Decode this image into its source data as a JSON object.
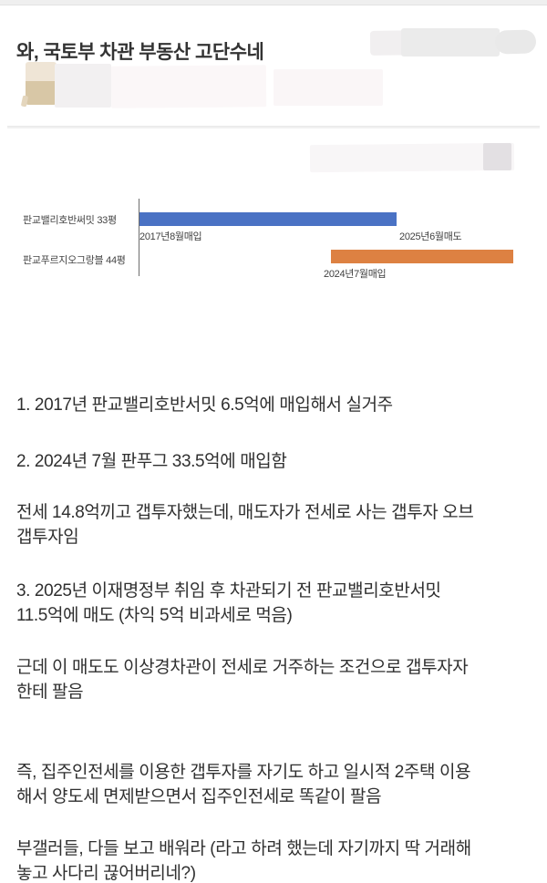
{
  "post": {
    "title": "와, 국토부 차관 부동산 고단수네",
    "paragraphs": [
      "1. 2017년 판교밸리호반서밋 6.5억에 매입해서 실거주",
      "2. 2024년 7월 판푸그 33.5억에 매입함",
      "전세 14.8억끼고 갭투자했는데, 매도자가 전세로 사는 갭투자 오브\n갭투자임",
      "3. 2025년 이재명정부 취임 후 차관되기 전 판교밸리호반서밋\n11.5억에 매도 (차익 5억 비과세로 먹음)",
      "근데 이 매도도 이상경차관이 전세로 거주하는 조건으로 갭투자자\n한테 팔음",
      "즉, 집주인전세를 이용한 갭투자를 자기도 하고 일시적 2주택 이용\n해서 양도세 면제받으면서 집주인전세로 똑같이 팔음",
      "부갤러들, 다들 보고 배워라 (라고 하려 했는데 자기까지 딱 거래해\n놓고 사다리 끊어버리네?)"
    ]
  },
  "chart_data": {
    "type": "bar",
    "subtype": "timeline",
    "orientation": "horizontal",
    "title": "",
    "grid": false,
    "legend": false,
    "categories": [
      "판교밸리호반써밋 33평",
      "판교푸르지오그랑블 44평"
    ],
    "x_range": [
      "2017-08",
      "2025-07"
    ],
    "series": [
      {
        "name": "판교밸리호반써밋 33평",
        "start": "2017-08",
        "end": "2025-06",
        "start_label": "2017년8월매입",
        "end_label": "2025년6월매도",
        "color": "#4a72c4"
      },
      {
        "name": "판교푸르지오그랑블 44평",
        "start": "2024-07",
        "end": "2025-07",
        "start_label": "2024년7월매입",
        "end_label": "",
        "color": "#dd8142"
      }
    ],
    "axis_line_color": "#6e6e6e",
    "label_color": "#404040"
  }
}
